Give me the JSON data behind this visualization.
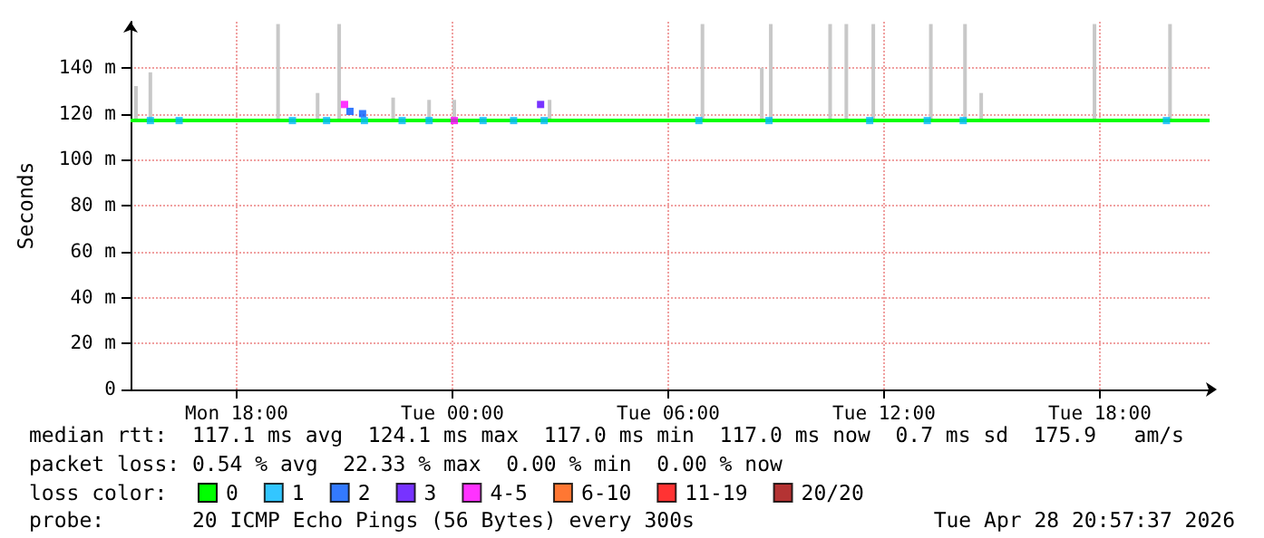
{
  "chart_data": {
    "type": "line",
    "ylabel": "Seconds",
    "legend_title": "loss color:",
    "annotations": [
      "median rtt:  117.1 ms avg  124.1 ms max  117.0 ms min  117.0 ms now  0.7 ms sd  175.9   am/s",
      "packet loss: 0.54 % avg  22.33 % max  0.00 % min  0.00 % now",
      "probe:       20 ICMP Echo Pings (56 Bytes) every 300s",
      "Tue Apr 28 20:57:37 2026"
    ],
    "xlim": [
      "2026-04-27T15:03",
      "2026-04-28T21:03"
    ],
    "xticks": [
      {
        "value": "2026-04-27T18:00",
        "label": "Mon 18:00"
      },
      {
        "value": "2026-04-28T00:00",
        "label": "Tue 00:00"
      },
      {
        "value": "2026-04-28T06:00",
        "label": "Tue 06:00"
      },
      {
        "value": "2026-04-28T12:00",
        "label": "Tue 12:00"
      },
      {
        "value": "2026-04-28T18:00",
        "label": "Tue 18:00"
      }
    ],
    "ylim": [
      0,
      160
    ],
    "yticks": [
      0,
      {
        "value": 20,
        "label": "20 m"
      },
      {
        "value": 40,
        "label": "40 m"
      },
      {
        "value": 60,
        "label": "60 m"
      },
      {
        "value": 80,
        "label": "80 m"
      },
      {
        "value": 100,
        "label": "100 m"
      },
      {
        "value": 120,
        "label": "120 m"
      },
      {
        "value": 140,
        "label": "140 m"
      }
    ],
    "grid": true,
    "legend": "bottom",
    "series": [
      {
        "type": "bar",
        "color": "#c8c8c8",
        "x": [
          "2026-04-27T15:12",
          "2026-04-27T15:36",
          "2026-04-27T19:09",
          "2026-04-27T20:15",
          "2026-04-27T20:51",
          "2026-04-27T22:21",
          "2026-04-27T23:21",
          "2026-04-28T00:03",
          "2026-04-28T02:42",
          "2026-04-28T06:57",
          "2026-04-28T08:36",
          "2026-04-28T08:51",
          "2026-04-28T10:30",
          "2026-04-28T10:57",
          "2026-04-28T11:42",
          "2026-04-28T13:18",
          "2026-04-28T14:15",
          "2026-04-28T14:42",
          "2026-04-28T17:51",
          "2026-04-28T19:57"
        ],
        "base": [
          117,
          117,
          117,
          117,
          117,
          117,
          117,
          117,
          117,
          117,
          117,
          117,
          117,
          117,
          117,
          117,
          117,
          117,
          117,
          117
        ],
        "values": [
          15,
          21,
          42,
          12,
          42,
          10,
          9,
          9,
          9,
          42,
          23,
          42,
          42,
          42,
          42,
          42,
          42,
          12,
          42,
          42
        ]
      },
      {
        "name": "0",
        "color": "#00ff00",
        "x": [
          "2026-04-27T15:03",
          "2026-04-27T20:00",
          "2026-04-28T01:00",
          "2026-04-28T06:00",
          "2026-04-28T11:00",
          "2026-04-28T16:00",
          "2026-04-28T21:03"
        ],
        "values": [
          117,
          117,
          117,
          117,
          117,
          117,
          117
        ]
      },
      {
        "type": "scatter",
        "marker": "square",
        "name": "1",
        "color": "#00b8ff",
        "x": [
          "2026-04-27T15:36",
          "2026-04-27T16:24",
          "2026-04-27T19:33",
          "2026-04-27T20:30",
          "2026-04-27T21:33",
          "2026-04-27T22:36",
          "2026-04-27T23:21",
          "2026-04-28T00:51",
          "2026-04-28T01:42",
          "2026-04-28T02:33",
          "2026-04-28T06:51",
          "2026-04-28T08:48",
          "2026-04-28T11:36",
          "2026-04-28T13:12",
          "2026-04-28T14:12",
          "2026-04-28T19:51"
        ],
        "values": [
          117,
          117,
          117,
          117,
          117,
          117,
          117,
          117,
          117,
          117,
          117,
          117,
          117,
          117,
          117,
          117
        ]
      },
      {
        "type": "scatter",
        "marker": "square",
        "name": "2",
        "color": "#0059ff",
        "x": [
          "2026-04-27T21:09",
          "2026-04-27T21:30"
        ],
        "values": [
          121,
          120
        ]
      },
      {
        "type": "scatter",
        "marker": "square",
        "name": "3",
        "color": "#5500ff",
        "x": [
          "2026-04-28T02:27"
        ],
        "values": [
          124
        ]
      },
      {
        "type": "scatter",
        "marker": "square",
        "name": "4-5",
        "color": "#ff00ff",
        "x": [
          "2026-04-27T21:00",
          "2026-04-28T00:03"
        ],
        "values": [
          124,
          117
        ]
      },
      {
        "type": "scatter",
        "name": "6-10",
        "color": "#ff5500"
      },
      {
        "type": "scatter",
        "name": "11-19",
        "color": "#ff0000"
      },
      {
        "type": "scatter",
        "name": "20/20",
        "color": "#a10000"
      }
    ]
  }
}
